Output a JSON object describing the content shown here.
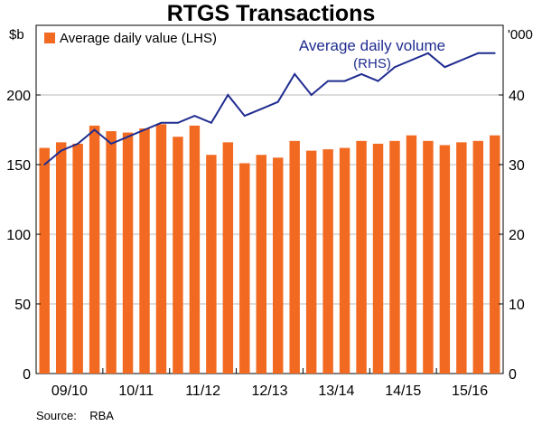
{
  "title": "RTGS Transactions",
  "source": "Source:    RBA",
  "colors": {
    "bar": "#f26a21",
    "line": "#1f2c8f",
    "grid": "#b8b8b8",
    "axis": "#000000"
  },
  "chart_data": {
    "type": "bar",
    "title": "RTGS Transactions",
    "left_axis": {
      "unit": "$b",
      "ylim": [
        0,
        250
      ],
      "ticks": [
        0,
        50,
        100,
        150,
        200
      ]
    },
    "right_axis": {
      "unit": "'000",
      "ylim": [
        0,
        50
      ],
      "ticks": [
        0,
        10,
        20,
        30,
        40
      ]
    },
    "x_tick_labels": [
      "09/10",
      "10/11",
      "11/12",
      "12/13",
      "13/14",
      "14/15",
      "15/16"
    ],
    "grid": true,
    "series": [
      {
        "name": "Average daily value (LHS)",
        "type": "bar",
        "axis": "left",
        "values": [
          162,
          166,
          165,
          178,
          174,
          173,
          176,
          179,
          170,
          178,
          157,
          166,
          151,
          157,
          155,
          167,
          160,
          161,
          162,
          167,
          165,
          167,
          171,
          167,
          164,
          166,
          167,
          171
        ]
      },
      {
        "name": "Average daily volume (RHS)",
        "legend_lines": [
          "Average daily volume",
          "(RHS)"
        ],
        "type": "line",
        "axis": "right",
        "values": [
          30,
          32,
          33,
          35,
          33,
          34,
          35,
          36,
          36,
          37,
          36,
          40,
          37,
          38,
          39,
          43,
          40,
          42,
          42,
          43,
          42,
          44,
          45,
          46,
          44,
          45,
          46,
          46
        ]
      }
    ]
  }
}
